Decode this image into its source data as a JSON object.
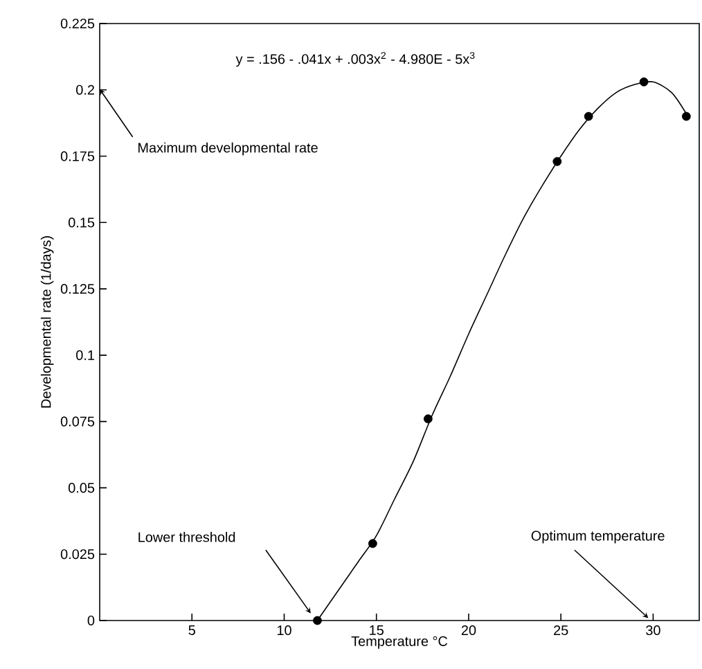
{
  "chart_data": {
    "type": "scatter",
    "xlabel": "Temperature °C",
    "ylabel": "Developmental rate (1/days)",
    "xlim": [
      0,
      32.5
    ],
    "ylim": [
      0,
      0.225
    ],
    "xticks": [
      5,
      10,
      15,
      20,
      25,
      30
    ],
    "yticks": [
      0,
      0.025,
      0.05,
      0.075,
      0.1,
      0.125,
      0.15,
      0.175,
      0.2,
      0.225
    ],
    "grid": false,
    "series": [
      {
        "color": "#000000",
        "marker": "circle",
        "x": [
          11.8,
          14.8,
          17.8,
          24.8,
          26.5,
          29.5,
          31.8
        ],
        "values": [
          0,
          0.029,
          0.076,
          0.173,
          0.19,
          0.203,
          0.19
        ]
      },
      {
        "type": "line",
        "color": "#000000",
        "marker": "none",
        "line_style": "solid",
        "x": [
          11.8,
          13,
          14,
          15,
          16,
          17,
          18,
          19,
          20,
          21,
          22,
          23,
          24,
          25,
          26,
          27,
          28,
          29,
          30,
          31,
          31.8
        ],
        "values": [
          0,
          0.012,
          0.022,
          0.032,
          0.046,
          0.06,
          0.077,
          0.092,
          0.108,
          0.123,
          0.138,
          0.152,
          0.164,
          0.175,
          0.185,
          0.193,
          0.199,
          0.202,
          0.203,
          0.199,
          0.191
        ]
      }
    ],
    "annotations": [
      "y = .156 - .041x + .003x$^{2}$ - 4.980E - 5x$^{3}$",
      "Maximum developmental rate",
      "Lower threshold",
      "Optimum temperature"
    ]
  }
}
